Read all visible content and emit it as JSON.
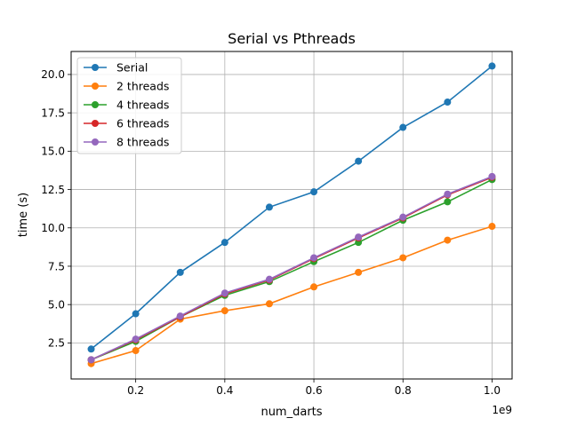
{
  "chart_data": {
    "type": "line",
    "title": "Serial vs Pthreads",
    "xlabel": "num_darts",
    "ylabel": "time (s)",
    "x_offset_label": "1e9",
    "x_tick_values": [
      0.2,
      0.4,
      0.6,
      0.8,
      1.0
    ],
    "x_tick_labels": [
      "0.2",
      "0.4",
      "0.6",
      "0.8",
      "1.0"
    ],
    "y_tick_values": [
      2.5,
      5.0,
      7.5,
      10.0,
      12.5,
      15.0,
      17.5,
      20.0
    ],
    "y_tick_labels": [
      "2.5",
      "5.0",
      "7.5",
      "10.0",
      "12.5",
      "15.0",
      "17.5",
      "20.0"
    ],
    "xlim": [
      0.055,
      1.045
    ],
    "ylim": [
      0.15,
      21.5
    ],
    "grid": true,
    "legend_position": "top-left",
    "x": [
      0.1,
      0.2,
      0.3,
      0.4,
      0.5,
      0.6,
      0.7,
      0.8,
      0.9,
      1.0
    ],
    "series": [
      {
        "name": "Serial",
        "color": "#1f77b4",
        "values": [
          2.1,
          4.4,
          7.1,
          9.05,
          11.35,
          12.35,
          14.35,
          16.55,
          18.2,
          20.55
        ]
      },
      {
        "name": "2 threads",
        "color": "#ff7f0e",
        "values": [
          1.15,
          2.0,
          4.05,
          4.6,
          5.05,
          6.15,
          7.1,
          8.05,
          9.2,
          10.1
        ]
      },
      {
        "name": "4 threads",
        "color": "#2ca02c",
        "values": [
          1.4,
          2.6,
          4.2,
          5.6,
          6.5,
          7.8,
          9.05,
          10.5,
          11.7,
          13.15
        ]
      },
      {
        "name": "6 threads",
        "color": "#d62728",
        "values": [
          1.4,
          2.7,
          4.2,
          5.7,
          6.6,
          8.0,
          9.35,
          10.65,
          12.15,
          13.3
        ]
      },
      {
        "name": "8 threads",
        "color": "#9467bd",
        "values": [
          1.4,
          2.75,
          4.25,
          5.75,
          6.65,
          8.05,
          9.4,
          10.7,
          12.2,
          13.35
        ]
      }
    ]
  }
}
